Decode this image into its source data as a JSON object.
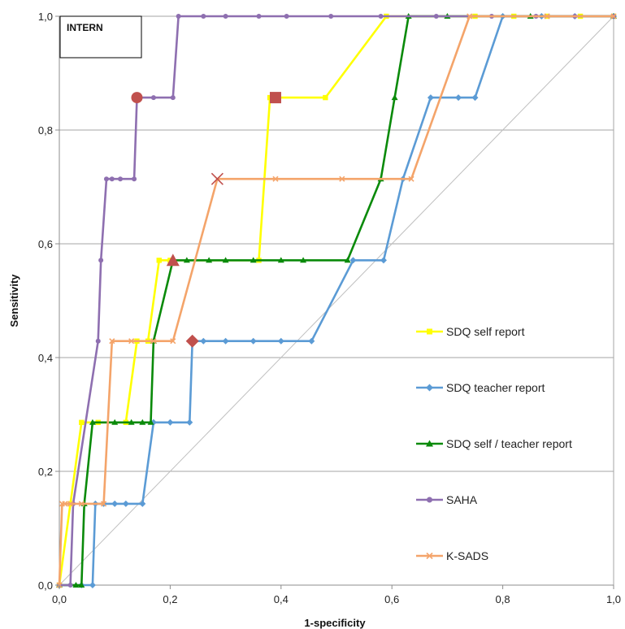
{
  "chart_data": {
    "type": "line",
    "title": "",
    "panel_label": "INTERN",
    "xlabel": "1-specificity",
    "ylabel": "Sensitivity",
    "xlim": [
      0,
      1
    ],
    "ylim": [
      0,
      1
    ],
    "x_ticks": [
      "0,0",
      "0,2",
      "0,4",
      "0,6",
      "0,8",
      "1,0"
    ],
    "y_ticks": [
      "0,0",
      "0,2",
      "0,4",
      "0,6",
      "0,8",
      "1,0"
    ],
    "grid": "horizontal",
    "legend_position": "right",
    "series": [
      {
        "name": "SDQ self report",
        "color": "#ffff00",
        "marker": "square",
        "x": [
          0,
          0.02,
          0.04,
          0.07,
          0.12,
          0.14,
          0.16,
          0.18,
          0.2,
          0.36,
          0.38,
          0.39,
          0.48,
          0.59,
          0.75,
          0.82,
          0.88,
          0.94,
          1.0
        ],
        "y": [
          0,
          0.143,
          0.286,
          0.286,
          0.286,
          0.429,
          0.429,
          0.571,
          0.571,
          0.571,
          0.857,
          0.857,
          0.857,
          1.0,
          1.0,
          1.0,
          1.0,
          1.0,
          1.0
        ],
        "cutoff": {
          "x": 0.39,
          "y": 0.857
        }
      },
      {
        "name": "SDQ teacher report",
        "color": "#5b9bd5",
        "marker": "diamond",
        "x": [
          0,
          0.04,
          0.06,
          0.065,
          0.08,
          0.1,
          0.12,
          0.15,
          0.17,
          0.2,
          0.235,
          0.24,
          0.26,
          0.3,
          0.35,
          0.4,
          0.455,
          0.53,
          0.585,
          0.62,
          0.67,
          0.72,
          0.75,
          0.8,
          0.87,
          0.93,
          1.0
        ],
        "y": [
          0,
          0,
          0,
          0.143,
          0.143,
          0.143,
          0.143,
          0.143,
          0.286,
          0.286,
          0.286,
          0.429,
          0.429,
          0.429,
          0.429,
          0.429,
          0.429,
          0.571,
          0.571,
          0.714,
          0.857,
          0.857,
          0.857,
          1.0,
          1.0,
          1.0,
          1.0
        ],
        "cutoff": {
          "x": 0.24,
          "y": 0.429
        }
      },
      {
        "name": "SDQ self / teacher report",
        "color": "#0a8a0a",
        "marker": "triangle",
        "x": [
          0,
          0.03,
          0.04,
          0.045,
          0.06,
          0.1,
          0.13,
          0.15,
          0.165,
          0.17,
          0.205,
          0.23,
          0.27,
          0.3,
          0.35,
          0.4,
          0.44,
          0.52,
          0.58,
          0.605,
          0.63,
          0.7,
          0.85,
          1.0
        ],
        "y": [
          0,
          0,
          0,
          0.143,
          0.286,
          0.286,
          0.286,
          0.286,
          0.286,
          0.429,
          0.571,
          0.571,
          0.571,
          0.571,
          0.571,
          0.571,
          0.571,
          0.571,
          0.714,
          0.857,
          1.0,
          1.0,
          1.0,
          1.0
        ],
        "cutoff": {
          "x": 0.205,
          "y": 0.571
        }
      },
      {
        "name": "SAHA",
        "color": "#8e6fb0",
        "marker": "circle",
        "x": [
          0,
          0.02,
          0.025,
          0.07,
          0.075,
          0.085,
          0.095,
          0.11,
          0.135,
          0.14,
          0.17,
          0.205,
          0.215,
          0.26,
          0.3,
          0.36,
          0.41,
          0.49,
          0.58,
          0.68,
          0.78,
          0.86,
          0.93,
          1.0
        ],
        "y": [
          0,
          0,
          0.143,
          0.429,
          0.571,
          0.714,
          0.714,
          0.714,
          0.714,
          0.857,
          0.857,
          0.857,
          1.0,
          1.0,
          1.0,
          1.0,
          1.0,
          1.0,
          1.0,
          1.0,
          1.0,
          1.0,
          1.0,
          1.0
        ],
        "cutoff": {
          "x": 0.14,
          "y": 0.857
        }
      },
      {
        "name": "K-SADS",
        "color": "#f4a46a",
        "marker": "x",
        "x": [
          0,
          0.005,
          0.01,
          0.02,
          0.04,
          0.08,
          0.095,
          0.13,
          0.17,
          0.205,
          0.285,
          0.39,
          0.51,
          0.635,
          0.74,
          0.88,
          1.0
        ],
        "y": [
          0,
          0.143,
          0.143,
          0.143,
          0.143,
          0.143,
          0.429,
          0.429,
          0.429,
          0.429,
          0.714,
          0.714,
          0.714,
          0.714,
          1.0,
          1.0,
          1.0
        ],
        "cutoff": {
          "x": 0.285,
          "y": 0.714
        }
      }
    ],
    "reference_line": {
      "x": [
        0,
        1
      ],
      "y": [
        0,
        1
      ],
      "color": "#bfbfbf"
    }
  }
}
